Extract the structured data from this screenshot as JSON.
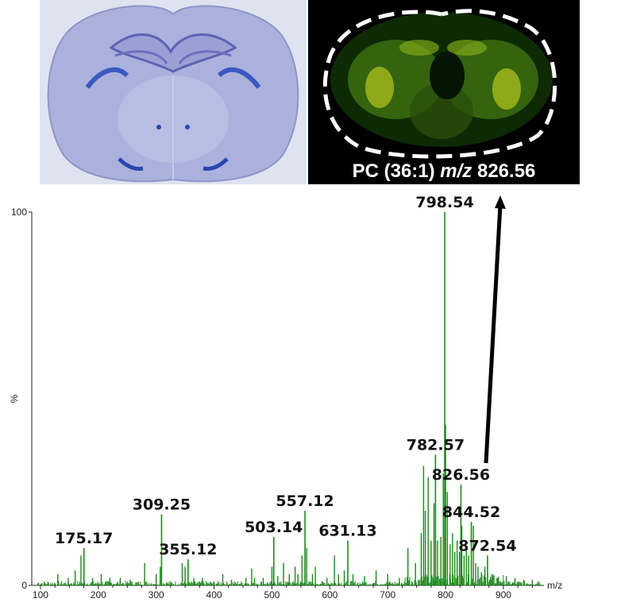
{
  "msi_caption": {
    "prefix": "PC (36:1) ",
    "mz_italic": "m/z",
    "value": " 826.56"
  },
  "chart_data": {
    "type": "mass-spectrum",
    "xlabel": "m/z",
    "ylabel": "%",
    "xlim": [
      85,
      970
    ],
    "ylim": [
      0,
      100
    ],
    "x_ticks": [
      100,
      200,
      300,
      400,
      500,
      600,
      700,
      800,
      900
    ],
    "y_ticks": [
      0,
      100
    ],
    "color": "#1a8a1a",
    "labeled_peaks": [
      {
        "mz": 175.17,
        "label": "175.17",
        "intensity": 10
      },
      {
        "mz": 309.25,
        "label": "309.25",
        "intensity": 19
      },
      {
        "mz": 355.12,
        "label": "355.12",
        "intensity": 7
      },
      {
        "mz": 503.14,
        "label": "503.14",
        "intensity": 13
      },
      {
        "mz": 557.12,
        "label": "557.12",
        "intensity": 20
      },
      {
        "mz": 631.13,
        "label": "631.13",
        "intensity": 12
      },
      {
        "mz": 782.57,
        "label": "782.57",
        "intensity": 35
      },
      {
        "mz": 798.54,
        "label": "798.54",
        "intensity": 100
      },
      {
        "mz": 826.56,
        "label": "826.56",
        "intensity": 27
      },
      {
        "mz": 844.52,
        "label": "844.52",
        "intensity": 17
      },
      {
        "mz": 872.54,
        "label": "872.54",
        "intensity": 8
      }
    ],
    "other_peaks": [
      [
        130,
        3
      ],
      [
        148,
        2
      ],
      [
        160,
        4
      ],
      [
        170,
        8
      ],
      [
        190,
        2
      ],
      [
        205,
        3
      ],
      [
        220,
        2
      ],
      [
        238,
        2
      ],
      [
        255,
        1.5
      ],
      [
        280,
        6
      ],
      [
        300,
        3
      ],
      [
        307,
        5
      ],
      [
        345,
        6
      ],
      [
        350,
        5
      ],
      [
        365,
        2
      ],
      [
        380,
        2
      ],
      [
        415,
        3
      ],
      [
        430,
        1.5
      ],
      [
        455,
        2
      ],
      [
        465,
        4.5
      ],
      [
        470,
        2
      ],
      [
        485,
        2
      ],
      [
        500,
        5
      ],
      [
        510,
        2.5
      ],
      [
        520,
        6
      ],
      [
        530,
        3
      ],
      [
        540,
        5
      ],
      [
        545,
        3
      ],
      [
        552,
        8
      ],
      [
        560,
        10
      ],
      [
        570,
        3
      ],
      [
        575,
        5
      ],
      [
        595,
        2
      ],
      [
        608,
        8
      ],
      [
        615,
        3
      ],
      [
        625,
        4
      ],
      [
        640,
        3
      ],
      [
        660,
        2.5
      ],
      [
        680,
        4
      ],
      [
        700,
        3
      ],
      [
        720,
        2
      ],
      [
        735,
        10
      ],
      [
        748,
        6
      ],
      [
        758,
        14
      ],
      [
        762,
        32
      ],
      [
        765,
        20
      ],
      [
        770,
        29
      ],
      [
        775,
        12
      ],
      [
        780,
        22
      ],
      [
        786,
        12
      ],
      [
        792,
        13
      ],
      [
        796,
        30
      ],
      [
        800,
        43
      ],
      [
        803,
        25
      ],
      [
        808,
        11
      ],
      [
        812,
        14
      ],
      [
        816,
        9
      ],
      [
        820,
        12
      ],
      [
        824,
        9
      ],
      [
        828,
        16
      ],
      [
        832,
        8
      ],
      [
        836,
        10
      ],
      [
        840,
        8
      ],
      [
        848,
        16
      ],
      [
        852,
        6
      ],
      [
        856,
        5
      ],
      [
        862,
        3.5
      ],
      [
        868,
        5
      ],
      [
        880,
        3
      ],
      [
        890,
        2
      ],
      [
        905,
        2.5
      ],
      [
        920,
        2
      ],
      [
        935,
        1.5
      ],
      [
        950,
        1.5
      ],
      [
        960,
        1
      ]
    ]
  }
}
